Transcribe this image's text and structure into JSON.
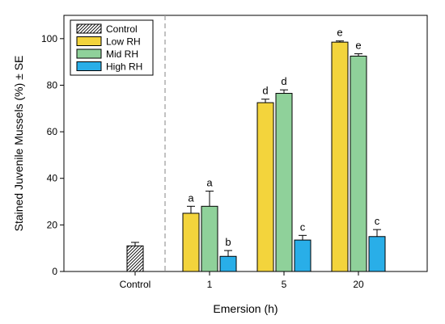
{
  "chart_data": {
    "type": "bar",
    "xlabel": "Emersion (h)",
    "ylabel": "Stained Juvenile Mussels (%) ± SE",
    "ylim": [
      0,
      110
    ],
    "yticks": [
      0,
      20,
      40,
      60,
      80,
      100
    ],
    "categories": [
      "Control",
      "1",
      "5",
      "20"
    ],
    "legend_position": "top-left",
    "grid": false,
    "divider_after_category": "Control",
    "series": [
      {
        "name": "Control",
        "pattern": "hatched",
        "color": "#ffffff",
        "values": [
          11,
          null,
          null,
          null
        ],
        "errors": [
          1.5,
          null,
          null,
          null
        ],
        "labels": [
          "",
          "",
          "",
          ""
        ]
      },
      {
        "name": "Low RH",
        "color": "#f3d43c",
        "values": [
          null,
          25,
          72.5,
          98.5
        ],
        "errors": [
          null,
          3,
          1.5,
          0.5
        ],
        "labels": [
          "",
          "a",
          "d",
          "e"
        ]
      },
      {
        "name": "Mid RH",
        "color": "#8fd19a",
        "values": [
          null,
          28,
          76.5,
          92.5
        ],
        "errors": [
          null,
          6.5,
          1.5,
          1
        ],
        "labels": [
          "",
          "a",
          "d",
          "e"
        ]
      },
      {
        "name": "High RH",
        "color": "#29aee8",
        "values": [
          null,
          6.5,
          13.5,
          15
        ],
        "errors": [
          null,
          2.5,
          2,
          3
        ],
        "labels": [
          "",
          "b",
          "c",
          "c"
        ]
      }
    ]
  }
}
